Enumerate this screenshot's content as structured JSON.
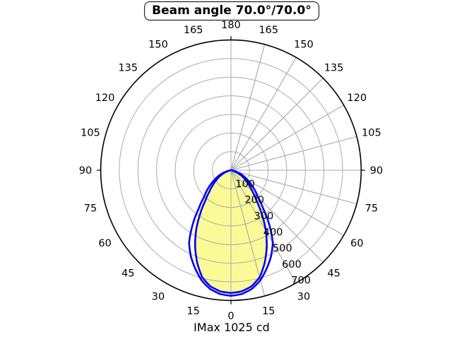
{
  "title": "Beam angle 70.0°/70.0°",
  "footer": {
    "imax_label": "IMax 1025 cd"
  },
  "colors": {
    "curve": "#0000EE",
    "beam_fill": "#FAFA98",
    "grid": "#ABABAB",
    "axis": "#000000",
    "background": "#FFFFFF"
  },
  "chart_data": {
    "type": "line",
    "subtype": "polar-photometric-intensity-distribution",
    "title": "Beam angle 70.0°/70.0°",
    "annotation": "IMax 1025 cd",
    "beam_angle_c0": "70.0°",
    "beam_angle_c90": "70.0°",
    "imax_cd": 1025,
    "grid": true,
    "symmetric_mirror": true,
    "zero_angle_position": "bottom",
    "angular_tick_step_deg": 15,
    "angle_labels": [
      "0",
      "15",
      "30",
      "45",
      "60",
      "75",
      "90",
      "105",
      "120",
      "135",
      "150",
      "165",
      "180"
    ],
    "radial_tick_labels": [
      "100",
      "200",
      "300",
      "400",
      "500",
      "600",
      "700"
    ],
    "radial_step": 100,
    "radial_max": 700,
    "angles_deg": [
      0,
      5,
      10,
      15,
      20,
      25,
      30,
      35,
      40,
      45,
      50,
      55,
      60,
      65,
      70,
      75,
      80,
      85,
      90
    ],
    "series": [
      {
        "name": "outer-plane",
        "values": [
          675,
          668,
          648,
          612,
          562,
          510,
          450,
          360,
          270,
          205,
          168,
          132,
          100,
          75,
          48,
          22,
          6,
          0,
          0
        ],
        "filled": false
      },
      {
        "name": "inner-plane",
        "values": [
          660,
          654,
          634,
          596,
          530,
          455,
          375,
          290,
          215,
          165,
          130,
          100,
          75,
          52,
          30,
          10,
          0,
          0,
          0
        ],
        "filled": true
      }
    ],
    "legend_position": "none"
  }
}
